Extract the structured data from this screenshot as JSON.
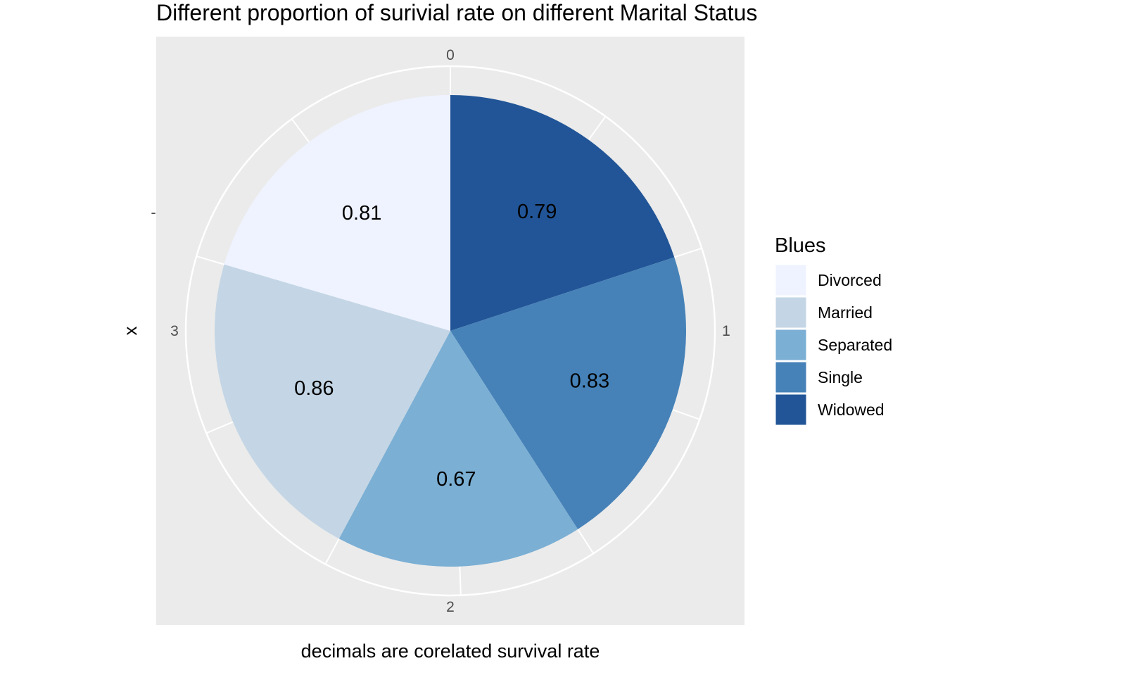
{
  "chart_data": {
    "type": "pie",
    "title": "Different proportion of surivial rate on different Marital Status",
    "xlabel": "decimals are corelated survival rate",
    "ylabel": "x",
    "y_tick": "-",
    "angular_ticks": [
      "0",
      "1",
      "2",
      "3"
    ],
    "angular_range": [
      0,
      4
    ],
    "legend": {
      "title": "Blues",
      "position": "right",
      "entries": [
        "Divorced",
        "Married",
        "Separated",
        "Single",
        "Widowed"
      ]
    },
    "categories": [
      "Widowed",
      "Single",
      "Separated",
      "Married",
      "Divorced"
    ],
    "values": [
      0.79,
      0.83,
      0.67,
      0.86,
      0.81
    ],
    "labels": [
      "0.79",
      "0.83",
      "0.67",
      "0.86",
      "0.81"
    ],
    "colors": {
      "Divorced": "#eff3ff",
      "Married": "#c4d6e5",
      "Separated": "#7bafd4",
      "Single": "#4682b8",
      "Widowed": "#215597"
    },
    "panel_background": "#ebebeb",
    "grid_color": "#ffffff"
  }
}
